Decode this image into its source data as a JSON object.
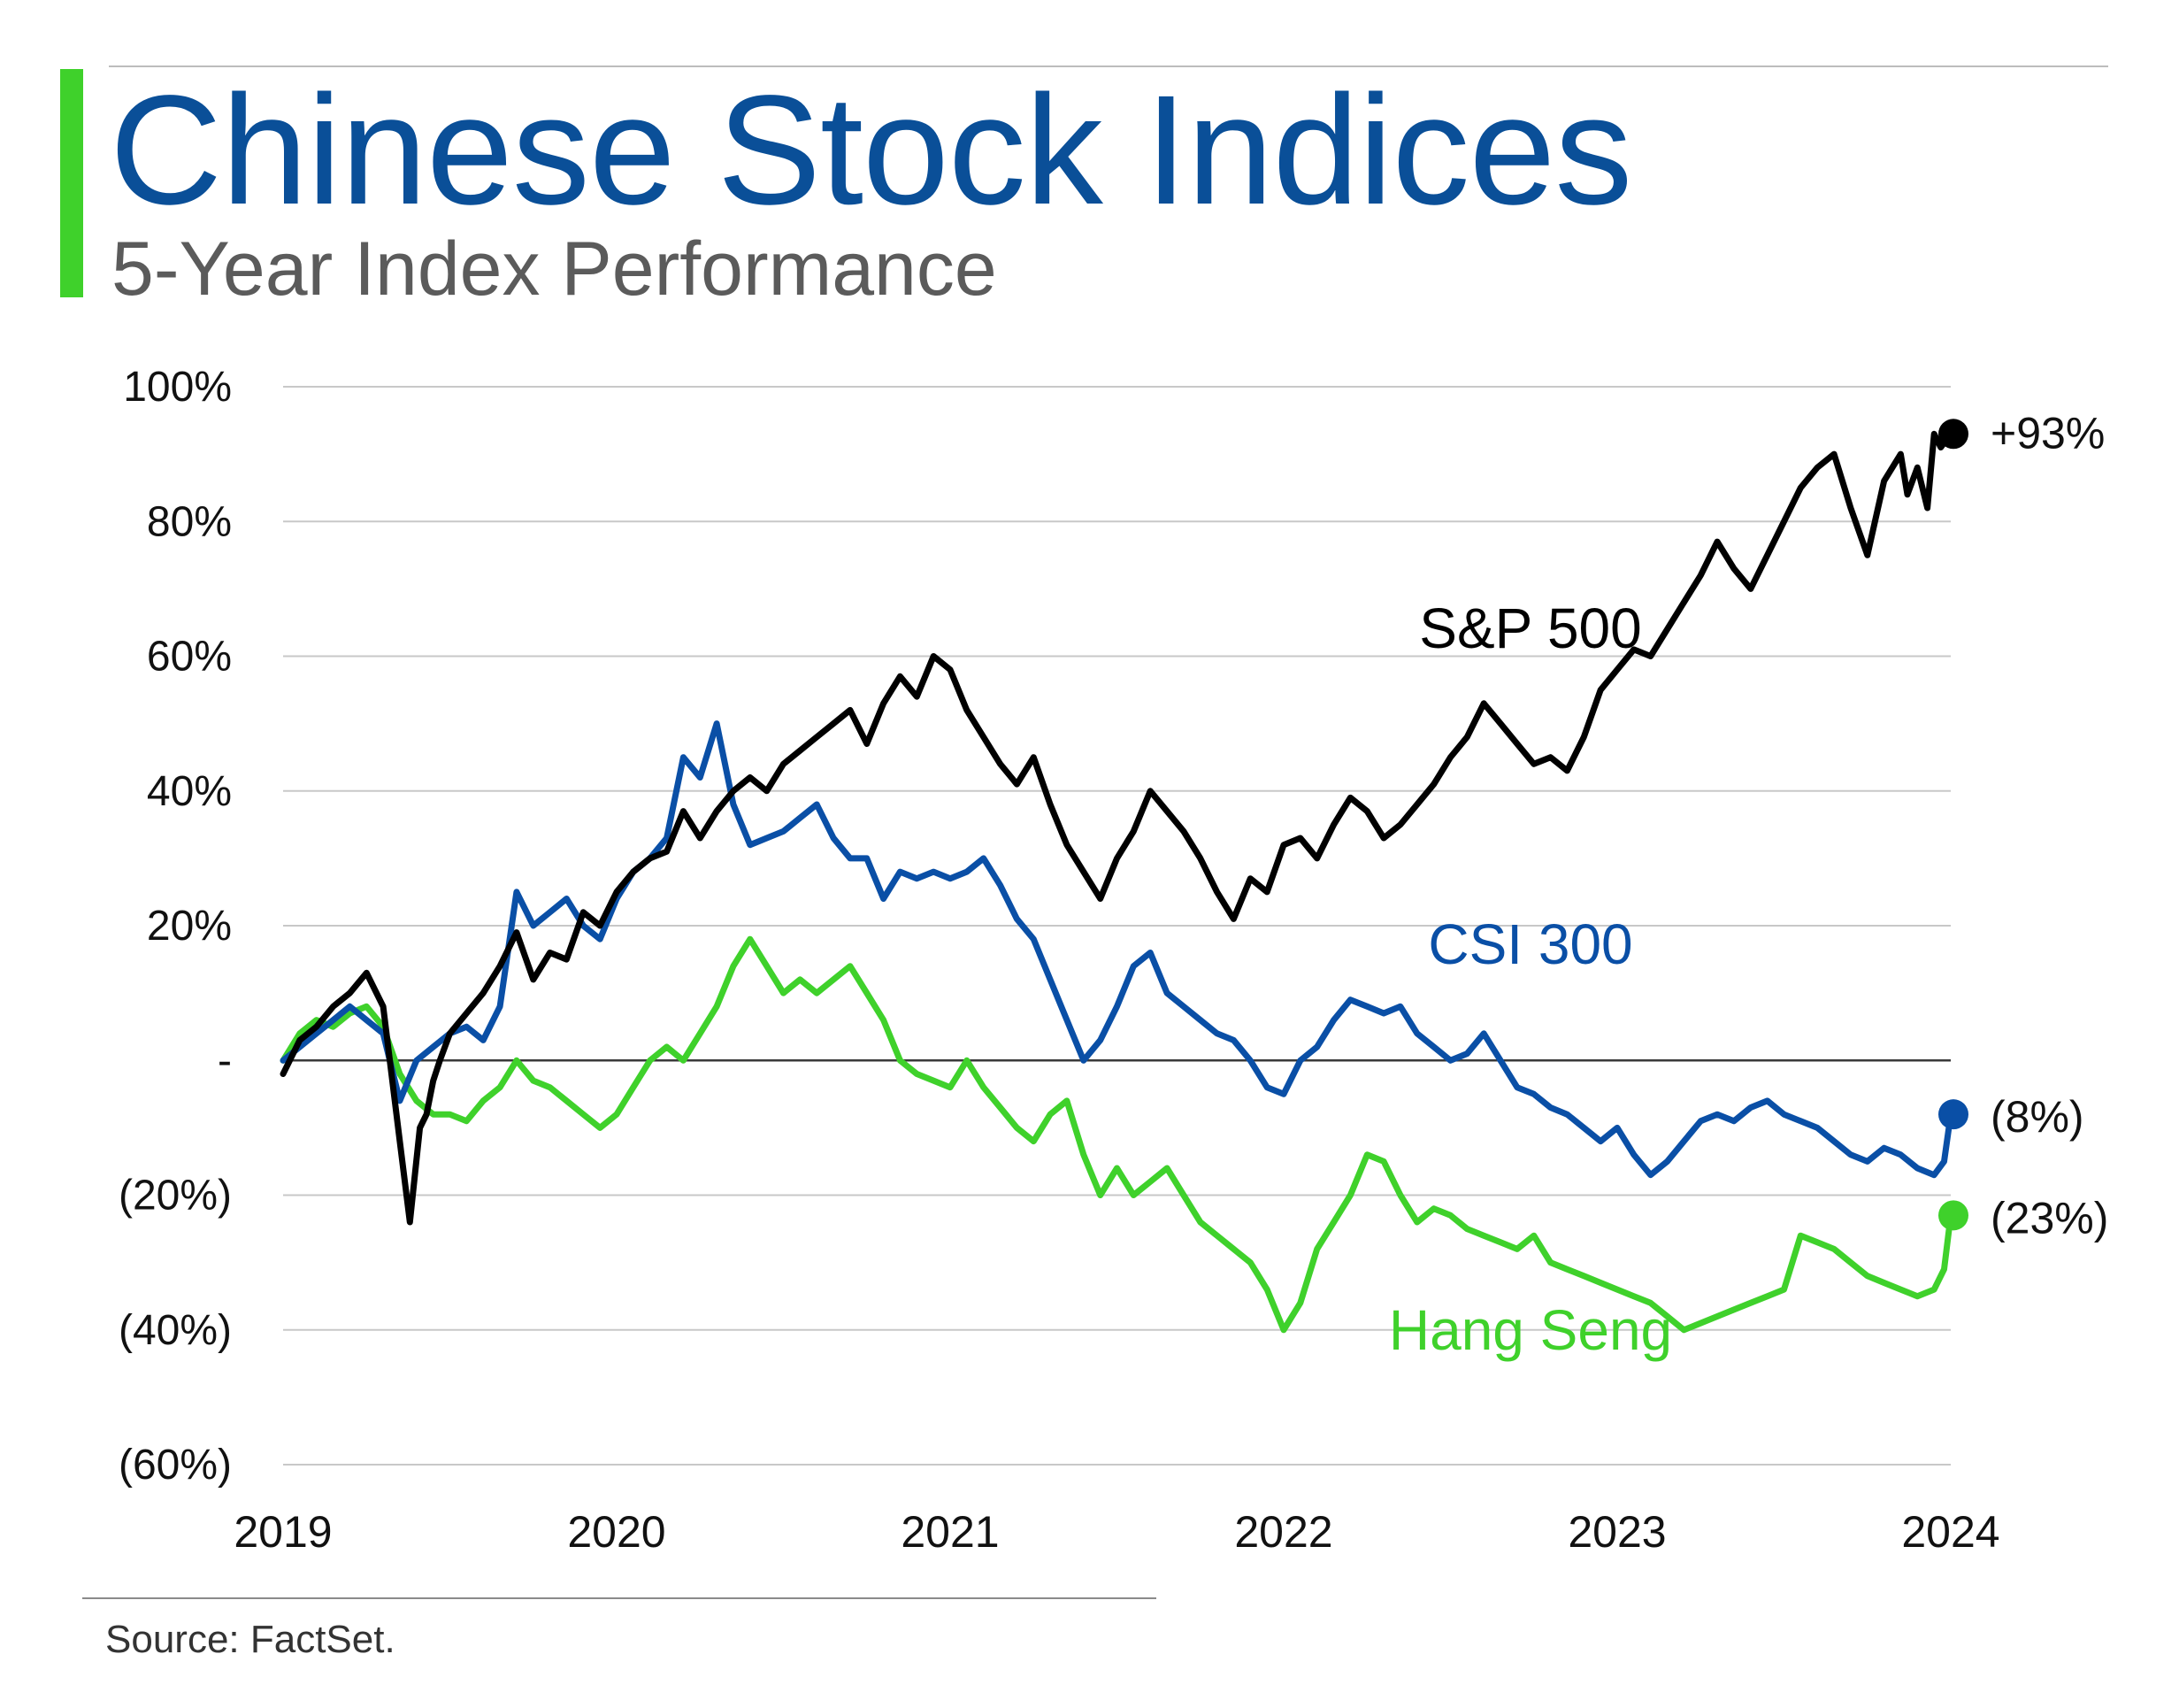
{
  "header": {
    "title": "Chinese Stock Indices",
    "subtitle": "5-Year Index Performance"
  },
  "footer": {
    "source": "Source: FactSet."
  },
  "chart_data": {
    "type": "line",
    "title": "Chinese Stock Indices",
    "subtitle": "5-Year Index Performance",
    "xlabel": "",
    "ylabel": "",
    "xlim": [
      2019,
      2024
    ],
    "ylim": [
      -60,
      100
    ],
    "grid": true,
    "x_ticks": [
      2019,
      2020,
      2021,
      2022,
      2023,
      2024
    ],
    "x_tick_labels": [
      "2019",
      "2020",
      "2021",
      "2022",
      "2023",
      "2024"
    ],
    "y_ticks": [
      100,
      80,
      60,
      40,
      20,
      0,
      -20,
      -40,
      -60
    ],
    "y_tick_labels": [
      "100%",
      "80%",
      "60%",
      "40%",
      "20%",
      "-",
      "(20%)",
      "(40%)",
      "(60%)"
    ],
    "series": [
      {
        "name": "S&P 500",
        "label": "S&P 500",
        "end_label": "+93%",
        "color": "#000000",
        "x": [
          2019.0,
          2019.05,
          2019.1,
          2019.15,
          2019.2,
          2019.25,
          2019.3,
          2019.35,
          2019.38,
          2019.41,
          2019.43,
          2019.45,
          2019.47,
          2019.5,
          2019.55,
          2019.6,
          2019.65,
          2019.7,
          2019.75,
          2019.8,
          2019.85,
          2019.9,
          2019.95,
          2020.0,
          2020.05,
          2020.1,
          2020.15,
          2020.2,
          2020.25,
          2020.3,
          2020.35,
          2020.4,
          2020.45,
          2020.5,
          2020.55,
          2020.6,
          2020.65,
          2020.7,
          2020.75,
          2020.8,
          2020.85,
          2020.9,
          2020.95,
          2021.0,
          2021.05,
          2021.1,
          2021.15,
          2021.2,
          2021.25,
          2021.3,
          2021.35,
          2021.4,
          2021.45,
          2021.5,
          2021.55,
          2021.6,
          2021.65,
          2021.7,
          2021.75,
          2021.8,
          2021.85,
          2021.9,
          2021.95,
          2022.0,
          2022.05,
          2022.1,
          2022.15,
          2022.2,
          2022.25,
          2022.3,
          2022.35,
          2022.4,
          2022.45,
          2022.5,
          2022.55,
          2022.6,
          2022.65,
          2022.7,
          2022.75,
          2022.8,
          2022.85,
          2022.9,
          2022.95,
          2023.0,
          2023.05,
          2023.1,
          2023.15,
          2023.2,
          2023.25,
          2023.3,
          2023.35,
          2023.4,
          2023.45,
          2023.5,
          2023.55,
          2023.6,
          2023.65,
          2023.7,
          2023.75,
          2023.8,
          2023.85,
          2023.87,
          2023.9,
          2023.93,
          2023.95,
          2023.97,
          2024.0
        ],
        "y": [
          -2,
          3,
          5,
          8,
          10,
          13,
          8,
          -12,
          -24,
          -10,
          -8,
          -3,
          0,
          4,
          7,
          10,
          14,
          19,
          12,
          16,
          15,
          22,
          20,
          25,
          28,
          30,
          31,
          37,
          33,
          37,
          40,
          42,
          40,
          44,
          46,
          48,
          50,
          52,
          47,
          53,
          57,
          54,
          60,
          58,
          52,
          48,
          44,
          41,
          45,
          38,
          32,
          28,
          24,
          30,
          34,
          40,
          37,
          34,
          30,
          25,
          21,
          27,
          25,
          32,
          33,
          30,
          35,
          39,
          37,
          33,
          35,
          38,
          41,
          45,
          48,
          53,
          50,
          47,
          44,
          45,
          43,
          48,
          55,
          58,
          61,
          60,
          64,
          68,
          72,
          77,
          73,
          70,
          75,
          80,
          85,
          88,
          90,
          82,
          75,
          86,
          90,
          84,
          88,
          82,
          93,
          91,
          93
        ],
        "end_value": 93
      },
      {
        "name": "CSI 300",
        "label": "CSI 300",
        "end_label": "(8%)",
        "color": "#0a4fa6",
        "x": [
          2019.0,
          2019.05,
          2019.1,
          2019.15,
          2019.2,
          2019.25,
          2019.3,
          2019.35,
          2019.4,
          2019.45,
          2019.5,
          2019.55,
          2019.6,
          2019.65,
          2019.7,
          2019.75,
          2019.8,
          2019.85,
          2019.9,
          2019.95,
          2020.0,
          2020.05,
          2020.1,
          2020.15,
          2020.2,
          2020.25,
          2020.3,
          2020.35,
          2020.4,
          2020.45,
          2020.5,
          2020.55,
          2020.6,
          2020.65,
          2020.7,
          2020.75,
          2020.8,
          2020.85,
          2020.9,
          2020.95,
          2021.0,
          2021.05,
          2021.1,
          2021.15,
          2021.2,
          2021.25,
          2021.3,
          2021.35,
          2021.4,
          2021.45,
          2021.5,
          2021.55,
          2021.6,
          2021.65,
          2021.7,
          2021.75,
          2021.8,
          2021.85,
          2021.9,
          2021.95,
          2022.0,
          2022.05,
          2022.1,
          2022.15,
          2022.2,
          2022.25,
          2022.3,
          2022.35,
          2022.4,
          2022.45,
          2022.5,
          2022.55,
          2022.6,
          2022.65,
          2022.7,
          2022.75,
          2022.8,
          2022.85,
          2022.9,
          2022.95,
          2023.0,
          2023.05,
          2023.1,
          2023.15,
          2023.2,
          2023.25,
          2023.3,
          2023.35,
          2023.4,
          2023.45,
          2023.5,
          2023.55,
          2023.6,
          2023.65,
          2023.7,
          2023.75,
          2023.8,
          2023.85,
          2023.9,
          2023.95,
          2023.98,
          2024.0
        ],
        "y": [
          0,
          2,
          4,
          6,
          8,
          6,
          4,
          -6,
          0,
          2,
          4,
          5,
          3,
          8,
          25,
          20,
          22,
          24,
          20,
          18,
          24,
          28,
          30,
          33,
          45,
          42,
          50,
          38,
          32,
          33,
          34,
          36,
          38,
          33,
          30,
          30,
          24,
          28,
          27,
          28,
          27,
          28,
          30,
          26,
          21,
          18,
          12,
          6,
          0,
          3,
          8,
          14,
          16,
          10,
          8,
          6,
          4,
          3,
          0,
          -4,
          -5,
          0,
          2,
          6,
          9,
          8,
          7,
          8,
          4,
          2,
          0,
          1,
          4,
          0,
          -4,
          -5,
          -7,
          -8,
          -10,
          -12,
          -10,
          -14,
          -17,
          -15,
          -12,
          -9,
          -8,
          -9,
          -7,
          -6,
          -8,
          -9,
          -10,
          -12,
          -14,
          -15,
          -13,
          -14,
          -16,
          -17,
          -15,
          -8
        ],
        "end_value": -8
      },
      {
        "name": "Hang Seng",
        "label": "Hang Seng",
        "end_label": "(23%)",
        "color": "#3fd12b",
        "x": [
          2019.0,
          2019.05,
          2019.1,
          2019.15,
          2019.2,
          2019.25,
          2019.3,
          2019.35,
          2019.4,
          2019.45,
          2019.5,
          2019.55,
          2019.6,
          2019.65,
          2019.7,
          2019.75,
          2019.8,
          2019.85,
          2019.9,
          2019.95,
          2020.0,
          2020.05,
          2020.1,
          2020.15,
          2020.2,
          2020.25,
          2020.3,
          2020.35,
          2020.4,
          2020.45,
          2020.5,
          2020.55,
          2020.6,
          2020.65,
          2020.7,
          2020.75,
          2020.8,
          2020.85,
          2020.9,
          2020.95,
          2021.0,
          2021.05,
          2021.1,
          2021.15,
          2021.2,
          2021.25,
          2021.3,
          2021.35,
          2021.4,
          2021.45,
          2021.5,
          2021.55,
          2021.6,
          2021.65,
          2021.7,
          2021.75,
          2021.8,
          2021.85,
          2021.9,
          2021.95,
          2022.0,
          2022.05,
          2022.1,
          2022.15,
          2022.2,
          2022.25,
          2022.3,
          2022.35,
          2022.4,
          2022.45,
          2022.5,
          2022.55,
          2022.6,
          2022.65,
          2022.7,
          2022.75,
          2022.8,
          2022.85,
          2022.9,
          2022.95,
          2023.0,
          2023.05,
          2023.1,
          2023.15,
          2023.2,
          2023.25,
          2023.3,
          2023.35,
          2023.4,
          2023.45,
          2023.5,
          2023.55,
          2023.6,
          2023.65,
          2023.7,
          2023.75,
          2023.8,
          2023.85,
          2023.9,
          2023.95,
          2023.98,
          2024.0
        ],
        "y": [
          0,
          4,
          6,
          5,
          7,
          8,
          5,
          -2,
          -6,
          -8,
          -8,
          -9,
          -6,
          -4,
          0,
          -3,
          -4,
          -6,
          -8,
          -10,
          -8,
          -4,
          0,
          2,
          0,
          4,
          8,
          14,
          18,
          14,
          10,
          12,
          10,
          12,
          14,
          10,
          6,
          0,
          -2,
          -3,
          -4,
          0,
          -4,
          -7,
          -10,
          -12,
          -8,
          -6,
          -14,
          -20,
          -16,
          -20,
          -18,
          -16,
          -20,
          -24,
          -26,
          -28,
          -30,
          -34,
          -40,
          -36,
          -28,
          -24,
          -20,
          -14,
          -15,
          -20,
          -24,
          -22,
          -23,
          -25,
          -26,
          -27,
          -28,
          -26,
          -30,
          -31,
          -32,
          -33,
          -34,
          -35,
          -36,
          -38,
          -40,
          -39,
          -38,
          -37,
          -36,
          -35,
          -34,
          -26,
          -27,
          -28,
          -30,
          -32,
          -33,
          -34,
          -35,
          -34,
          -31,
          -23
        ],
        "end_value": -23
      }
    ]
  }
}
